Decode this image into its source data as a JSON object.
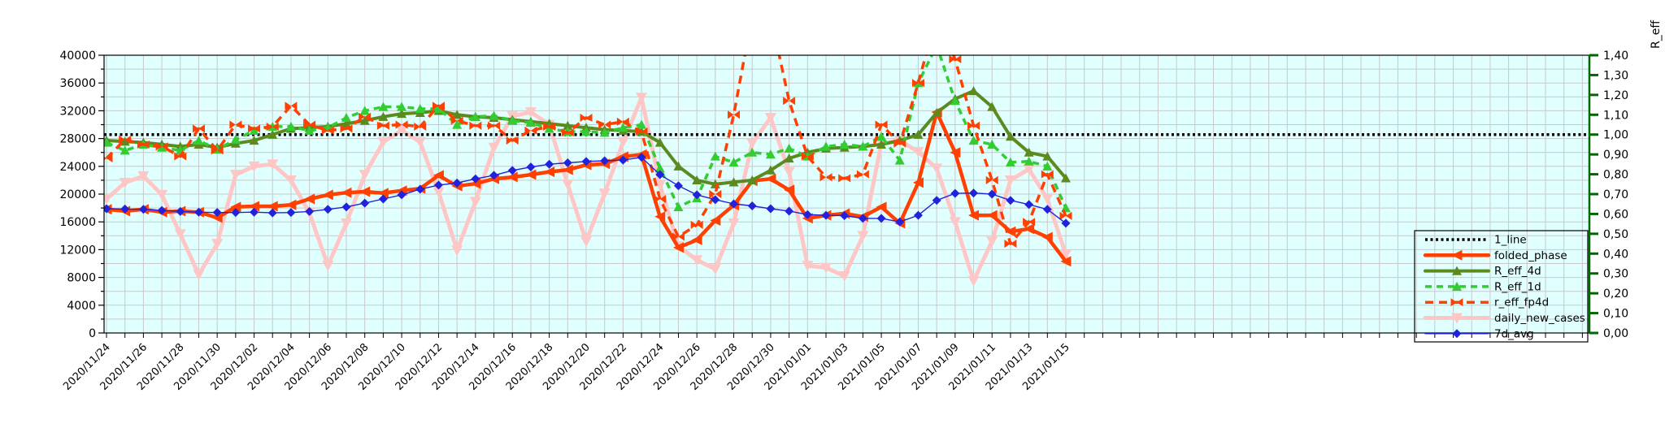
{
  "page": {
    "background": "#FFFFFF"
  },
  "chart_data": {
    "type": "line",
    "title": "",
    "plot_background": "#E0FFFF",
    "grid_color": "#C9C9C9",
    "x_tick_label_every": 2,
    "x_axis_extends_beyond_data_days": 28,
    "x_categories": [
      "2020/11/24",
      "2020/11/25",
      "2020/11/26",
      "2020/11/27",
      "2020/11/28",
      "2020/11/29",
      "2020/11/30",
      "2020/12/01",
      "2020/12/02",
      "2020/12/03",
      "2020/12/04",
      "2020/12/05",
      "2020/12/06",
      "2020/12/07",
      "2020/12/08",
      "2020/12/09",
      "2020/12/10",
      "2020/12/11",
      "2020/12/12",
      "2020/12/13",
      "2020/12/14",
      "2020/12/15",
      "2020/12/16",
      "2020/12/17",
      "2020/12/18",
      "2020/12/19",
      "2020/12/20",
      "2020/12/21",
      "2020/12/22",
      "2020/12/23",
      "2020/12/24",
      "2020/12/25",
      "2020/12/26",
      "2020/12/27",
      "2020/12/28",
      "2020/12/29",
      "2020/12/30",
      "2020/12/31",
      "2021/01/01",
      "2021/01/02",
      "2021/01/03",
      "2021/01/04",
      "2021/01/05",
      "2021/01/06",
      "2021/01/07",
      "2021/01/08",
      "2021/01/09",
      "2021/01/10",
      "2021/01/11",
      "2021/01/12",
      "2021/01/13",
      "2021/01/14",
      "2021/01/15"
    ],
    "left_axis": {
      "min": 0,
      "max": 40000,
      "tick_step": 4000,
      "grid_step": 2000,
      "tick_labels": [
        "0",
        "4000",
        "8000",
        "12000",
        "16000",
        "20000",
        "24000",
        "28000",
        "32000",
        "36000",
        "40000"
      ],
      "color": "#000000"
    },
    "right_axis": {
      "label": "R_eff",
      "min": 0,
      "max": 1.4,
      "tick_step": 0.1,
      "tick_labels": [
        "0,00",
        "0,10",
        "0,20",
        "0,30",
        "0,40",
        "0,50",
        "0,60",
        "0,70",
        "0,80",
        "0,90",
        "1,00",
        "1,10",
        "1,20",
        "1,30",
        "1,40"
      ],
      "color": "#006600"
    },
    "reference_line": {
      "name": "1_line",
      "axis": "right",
      "value": 1.0,
      "color": "#000000",
      "style": "dotted"
    },
    "series": [
      {
        "name": "folded_phase",
        "axis": "left",
        "color": "#FF4000",
        "line_style": "solid",
        "marker": "triangle-left",
        "values": [
          17800,
          17550,
          17800,
          17400,
          17550,
          17400,
          16600,
          18150,
          18250,
          18250,
          18450,
          19300,
          19900,
          20200,
          20350,
          20150,
          20500,
          20800,
          22700,
          21150,
          21500,
          22200,
          22450,
          22800,
          23200,
          23500,
          24200,
          24350,
          25400,
          25700,
          16750,
          12300,
          13400,
          16200,
          18400,
          21900,
          22200,
          20600,
          16500,
          16950,
          17200,
          16750,
          18150,
          15800,
          21650,
          31800,
          26000,
          16950,
          16950,
          14600,
          15000,
          13800,
          10300
        ]
      },
      {
        "name": "R_eff_4d",
        "axis": "right",
        "color": "#5B8A1F",
        "line_style": "solid",
        "marker": "triangle-up",
        "values": [
          0.97,
          0.965,
          0.96,
          0.95,
          0.94,
          0.95,
          0.935,
          0.955,
          0.97,
          1.0,
          1.03,
          1.035,
          1.04,
          1.055,
          1.07,
          1.09,
          1.105,
          1.11,
          1.12,
          1.1,
          1.09,
          1.085,
          1.075,
          1.065,
          1.055,
          1.045,
          1.035,
          1.025,
          1.02,
          1.015,
          0.96,
          0.84,
          0.77,
          0.75,
          0.76,
          0.77,
          0.82,
          0.88,
          0.91,
          0.93,
          0.935,
          0.94,
          0.95,
          0.97,
          1.0,
          1.11,
          1.18,
          1.22,
          1.14,
          0.99,
          0.91,
          0.89,
          0.78
        ]
      },
      {
        "name": "R_eff_1d",
        "axis": "right",
        "color": "#33CC33",
        "line_style": "dashed",
        "marker": "triangle-up",
        "values": [
          0.96,
          0.92,
          0.95,
          0.935,
          0.92,
          0.97,
          0.925,
          0.975,
          1.02,
          1.04,
          1.04,
          1.02,
          1.035,
          1.085,
          1.12,
          1.14,
          1.14,
          1.13,
          1.13,
          1.05,
          1.09,
          1.095,
          1.07,
          1.06,
          1.03,
          1.015,
          1.015,
          1.01,
          1.035,
          1.05,
          0.83,
          0.635,
          0.68,
          0.89,
          0.86,
          0.91,
          0.9,
          0.93,
          0.89,
          0.94,
          0.95,
          0.94,
          0.99,
          0.87,
          1.26,
          1.45,
          1.17,
          0.97,
          0.95,
          0.86,
          0.865,
          0.84,
          0.63
        ]
      },
      {
        "name": "r_eff_fp4d",
        "axis": "right",
        "color": "#FF4000",
        "line_style": "dashed",
        "marker": "bowtie",
        "values": [
          0.88,
          0.975,
          0.95,
          0.94,
          0.89,
          1.03,
          0.92,
          1.05,
          1.03,
          1.04,
          1.145,
          1.05,
          1.02,
          1.03,
          1.09,
          1.045,
          1.05,
          1.04,
          1.145,
          1.07,
          1.045,
          1.045,
          0.97,
          1.02,
          1.04,
          1.01,
          1.085,
          1.05,
          1.065,
          1.015,
          0.675,
          0.485,
          0.545,
          0.7,
          1.1,
          1.6,
          1.6,
          1.17,
          0.89,
          0.785,
          0.78,
          0.8,
          1.05,
          0.955,
          1.26,
          1.6,
          1.38,
          1.045,
          0.77,
          0.45,
          0.56,
          0.8,
          0.59
        ]
      },
      {
        "name": "daily_new_cases",
        "axis": "left",
        "color": "#FFC6C6",
        "line_style": "solid",
        "marker": "triangle-down",
        "values": [
          19300,
          21650,
          22600,
          19900,
          14250,
          8400,
          12850,
          22800,
          24000,
          24300,
          22000,
          17300,
          9700,
          15800,
          22800,
          27500,
          29200,
          27500,
          20300,
          11900,
          18900,
          26700,
          31200,
          31800,
          30000,
          21400,
          13200,
          20100,
          27500,
          33900,
          21300,
          12500,
          10500,
          9200,
          15800,
          27300,
          31000,
          23200,
          9700,
          9400,
          8200,
          14000,
          27300,
          27700,
          26100,
          23700,
          16000,
          7500,
          13200,
          22000,
          23600,
          19300,
          11300
        ]
      },
      {
        "name": "7d_avg",
        "axis": "left",
        "color": "#2222DD",
        "line_style": "thin",
        "marker": "diamond",
        "values": [
          17900,
          17850,
          17800,
          17650,
          17500,
          17400,
          17350,
          17350,
          17400,
          17300,
          17350,
          17500,
          17800,
          18150,
          18700,
          19300,
          19900,
          20700,
          21300,
          21600,
          22200,
          22700,
          23400,
          23900,
          24300,
          24500,
          24700,
          24800,
          24900,
          25300,
          22800,
          21200,
          19900,
          19200,
          18600,
          18300,
          17900,
          17550,
          17050,
          16950,
          16900,
          16500,
          16500,
          16000,
          16950,
          19100,
          20100,
          20150,
          20000,
          19100,
          18500,
          17800,
          15800
        ]
      }
    ],
    "legend": {
      "position": "inside-right-bottom",
      "entries": [
        "1_line",
        "folded_phase",
        "R_eff_4d",
        "R_eff_1d",
        "r_eff_fp4d",
        "daily_new_cases",
        "7d_avg"
      ]
    }
  }
}
